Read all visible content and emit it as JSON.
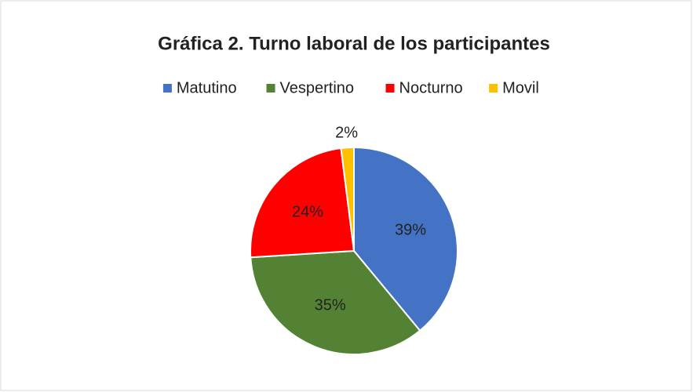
{
  "chart_data": {
    "type": "pie",
    "title": "Gráfica 2. Turno laboral de los participantes",
    "categories": [
      "Matutino",
      "Vespertino",
      "Nocturno",
      "Movil"
    ],
    "values": [
      39,
      35,
      24,
      2
    ],
    "value_labels": [
      "39%",
      "35%",
      "24%",
      "2%"
    ],
    "colors": [
      "#4472c4",
      "#548235",
      "#ff0000",
      "#ffc000"
    ],
    "legend": "top"
  }
}
